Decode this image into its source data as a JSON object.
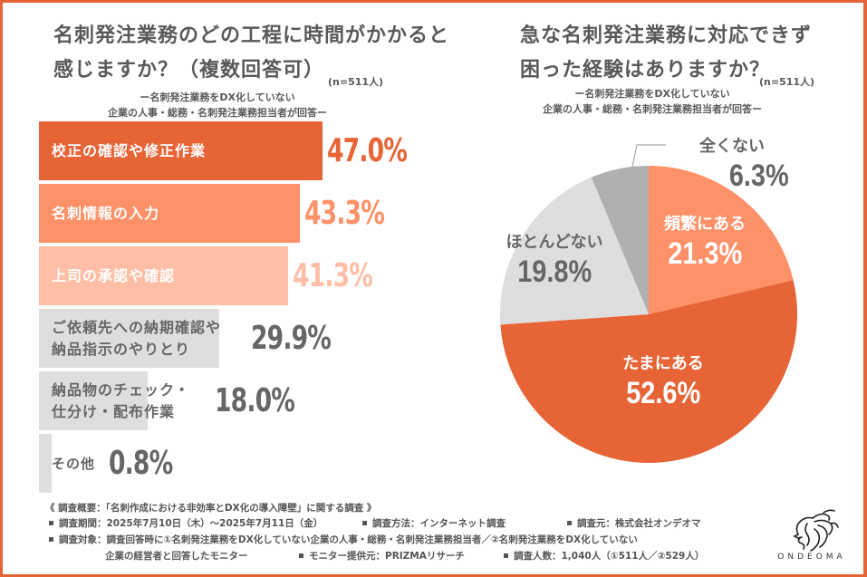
{
  "left_panel": {
    "title_line1": "名刺発注業務のどの工程に時間がかかると",
    "title_line2": "感じますか？（複数回答可）",
    "n_label": "(n=511人)",
    "sub_line1": "ー名刺発注業務をDX化していない",
    "sub_line2": "企業の人事・総務・名刺発注業務担当者が回答ー"
  },
  "right_panel": {
    "title_line1": "急な名刺発注業務に対応できず",
    "title_line2": "困った経験はありますか？",
    "n_label": "(n=511人)",
    "sub_line1": "ー名刺発注業務をDX化していない",
    "sub_line2": "企業の人事・総務・名刺発注業務担当者が回答ー"
  },
  "colors": {
    "frame": "#e66436",
    "primary": "#e66436",
    "secondary": "#ff9169",
    "tertiary": "#ffbea5",
    "gray_light": "#dedede",
    "gray_mid": "#b0b0b0",
    "text_gray": "#666666"
  },
  "chart_data": [
    {
      "type": "bar",
      "orientation": "horizontal",
      "title": "名刺発注業務のどの工程に時間がかかると感じますか？（複数回答可）",
      "categories": [
        "校正の確認や修正作業",
        "名刺情報の入力",
        "上司の承認や確認",
        "ご依頼先への納期確認や納品指示のやりとり",
        "納品物のチェック・仕分け・配布作業",
        "その他"
      ],
      "category_lines": [
        [
          "校正の確認や修正作業"
        ],
        [
          "名刺情報の入力"
        ],
        [
          "上司の承認や確認"
        ],
        [
          "ご依頼先への納期確認や",
          "納品指示のやりとり"
        ],
        [
          "納品物のチェック・",
          "仕分け・配布作業"
        ],
        [
          "その他"
        ]
      ],
      "values": [
        47.0,
        43.3,
        41.3,
        29.9,
        18.0,
        0.8
      ],
      "value_labels": [
        "47.0%",
        "43.3%",
        "41.3%",
        "29.9%",
        "18.0%",
        "0.8%"
      ],
      "unit": "%",
      "xlim": [
        0,
        47.0
      ]
    },
    {
      "type": "pie",
      "title": "急な名刺発注業務に対応できず困った経験はありますか？",
      "start": "top",
      "direction": "clockwise",
      "slices": [
        {
          "label": "頻繁にある",
          "value": 21.3,
          "value_label": "21.3%"
        },
        {
          "label": "たまにある",
          "value": 52.6,
          "value_label": "52.6%"
        },
        {
          "label": "ほとんどない",
          "value": 19.8,
          "value_label": "19.8%"
        },
        {
          "label": "全くない",
          "value": 6.3,
          "value_label": "6.3%"
        }
      ]
    }
  ],
  "footer": {
    "heading": "《 調査概要：「名刺作成における非効率とDX化の導入障壁」に関する調査 》",
    "period": "調査期間：2025年7月10日（木）～2025年7月11日（金）",
    "method": "調査方法：インターネット調査",
    "source": "調査元：株式会社オンデオマ",
    "target_line1": "調査対象：調査回答時に①名刺発注業務をDX化していない企業の人事・総務・名刺発注業務担当者／②名刺発注業務をDX化していない",
    "target_line2": "企業の経営者と回答したモニター",
    "provider": "モニター提供元：PRIZMAリサーチ",
    "count": "調査人数：1,040人（①511人／②529人）"
  },
  "logo": {
    "text": "ONDEOMA",
    "icon": "lion-head-icon"
  }
}
